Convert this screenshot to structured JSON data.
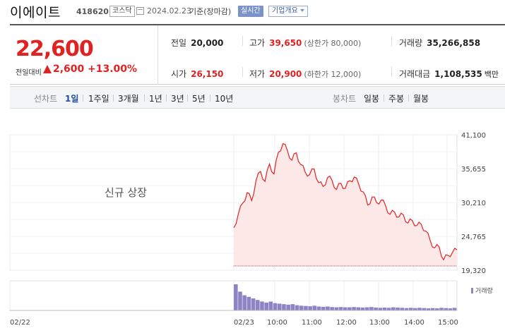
{
  "header": {
    "stock_name": "이에이트",
    "stock_code": "418620",
    "market_badge": "코스닥",
    "date": "2024.02.23",
    "basis": "기준(장마감)",
    "realtime_button": "실시간",
    "company_info_button": "기업개요"
  },
  "summary": {
    "current_price": "22,600",
    "change_label": "전일대비",
    "change_value": "2,600",
    "change_percent": "+13.00%",
    "prev_close_label": "전일",
    "prev_close": "20,000",
    "open_label": "시가",
    "open": "26,150",
    "high_label": "고가",
    "high": "39,650",
    "upper_limit": "(상한가 80,000)",
    "low_label": "저가",
    "low": "20,900",
    "lower_limit": "(하한가 12,000)",
    "volume_label": "거래량",
    "volume": "35,266,858",
    "amount_label": "거래대금",
    "amount": "1,108,535",
    "amount_unit": "백만"
  },
  "tabs": {
    "line_label": "선차트",
    "line_items": [
      "1일",
      "1주일",
      "3개월",
      "1년",
      "3년",
      "5년",
      "10년"
    ],
    "active": "1일",
    "candle_label": "봉차트",
    "candle_items": [
      "일봉",
      "주봉",
      "월봉"
    ]
  },
  "colors": {
    "rise": "#e12222",
    "fill": "#fde8e8",
    "volume": "#8e83c4",
    "active_tab": "#1f4aa8"
  },
  "chart_data": {
    "type": "area",
    "annotation": "신규 상장",
    "ytick_labels": [
      "41,100",
      "35,655",
      "30,210",
      "24,765",
      "19,320"
    ],
    "ylim": [
      19320,
      41100
    ],
    "xtick_labels": [
      "02/22",
      "02/23",
      "10:00",
      "11:00",
      "12:00",
      "13:00",
      "14:00",
      "15:00"
    ],
    "volume_legend": "거래량",
    "reference_line": 20000,
    "series": [
      {
        "values": [
          26150,
          28300,
          30100,
          31800,
          30500,
          33800,
          35200,
          33600,
          36400,
          34800,
          38300,
          39650,
          38600,
          37000,
          38200,
          36300,
          35100,
          34700,
          35600,
          33400,
          32800,
          34200,
          33800,
          32300,
          33300,
          32500,
          33700,
          34300,
          33100,
          31900,
          29800,
          31100,
          30200,
          30600,
          29700,
          28300,
          28700,
          27900,
          28200,
          26900,
          27300,
          26500,
          26700,
          25600,
          24100,
          22900,
          23100,
          21000,
          21700,
          22200,
          22600
        ]
      }
    ],
    "volume": [
      100,
      72,
      58,
      52,
      46,
      40,
      34,
      30,
      34,
      28,
      26,
      24,
      22,
      24,
      20,
      18,
      17,
      16,
      18,
      15,
      14,
      15,
      13,
      12,
      13,
      12,
      12,
      13,
      12,
      11,
      12,
      13,
      11,
      10,
      11,
      10,
      12,
      11,
      10,
      9,
      10,
      9,
      10,
      9,
      8,
      9,
      8,
      10,
      9,
      8,
      10
    ]
  }
}
